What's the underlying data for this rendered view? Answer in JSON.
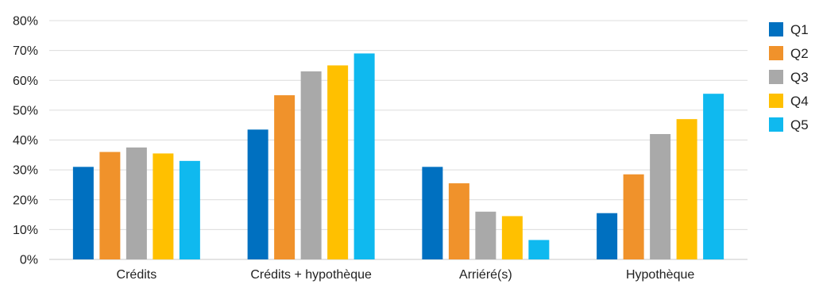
{
  "chart_data": {
    "type": "bar",
    "title": "",
    "xlabel": "",
    "ylabel": "",
    "categories": [
      "Crédits",
      "Crédits + hypothèque",
      "Arriéré(s)",
      "Hypothèque"
    ],
    "series": [
      {
        "name": "Q1",
        "color": "#0070C0",
        "values": [
          31,
          43.5,
          31,
          15.5
        ]
      },
      {
        "name": "Q2",
        "color": "#F0922B",
        "values": [
          36,
          55,
          25.5,
          28.5
        ]
      },
      {
        "name": "Q3",
        "color": "#A9A9A9",
        "values": [
          37.5,
          63,
          16,
          42
        ]
      },
      {
        "name": "Q4",
        "color": "#FFC000",
        "values": [
          35.5,
          65,
          14.5,
          47
        ]
      },
      {
        "name": "Q5",
        "color": "#0FB9EF",
        "values": [
          33,
          69,
          6.5,
          55.5
        ]
      }
    ],
    "ylim": [
      0,
      80
    ],
    "yticks": [
      0,
      10,
      20,
      30,
      40,
      50,
      60,
      70,
      80
    ],
    "ytick_labels": [
      "0%",
      "10%",
      "20%",
      "30%",
      "40%",
      "50%",
      "60%",
      "70%",
      "80%"
    ],
    "grid": true,
    "legend_position": "right"
  }
}
